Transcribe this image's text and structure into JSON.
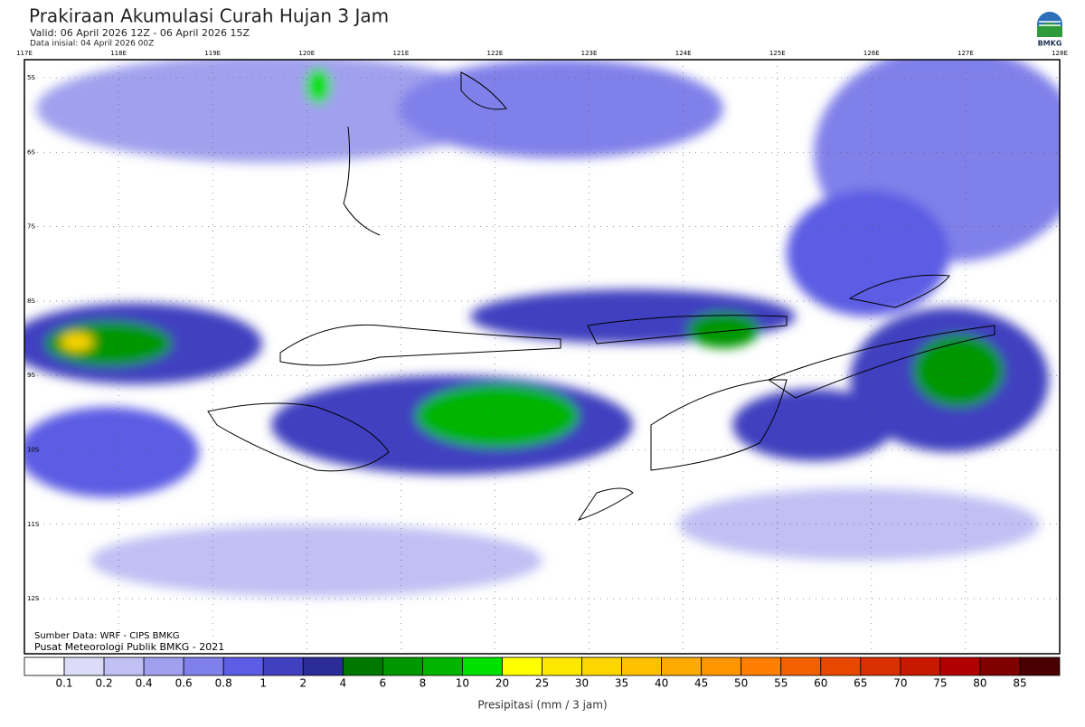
{
  "header": {
    "title": "Prakiraan Akumulasi Curah Hujan 3 Jam",
    "valid": "Valid: 06 April 2026 12Z - 06 April 2026 15Z",
    "init": "Data inisial: 04 April 2026 00Z"
  },
  "logo": {
    "text": "BMKG"
  },
  "map": {
    "lon_labels": [
      "117E",
      "118E",
      "119E",
      "120E",
      "121E",
      "122E",
      "123E",
      "124E",
      "125E",
      "126E",
      "127E",
      "128E"
    ],
    "lat_labels": [
      "5S",
      "6S",
      "7S",
      "8S",
      "9S",
      "10S",
      "11S",
      "12S"
    ]
  },
  "credits": [
    "Sumber Data: WRF - CIPS BMKG",
    "Pusat Meteorologi Publik BMKG - 2021"
  ],
  "legend": {
    "colors": [
      "#ffffff",
      "#dcdcf8",
      "#c0c0f4",
      "#a0a0ee",
      "#8080ea",
      "#5c5ce4",
      "#4040c0",
      "#2c2c98",
      "#007800",
      "#009600",
      "#00b400",
      "#00e000",
      "#ffff00",
      "#ffe800",
      "#ffd500",
      "#ffc000",
      "#ffaa00",
      "#ff9500",
      "#ff7f00",
      "#f26000",
      "#e84800",
      "#d83000",
      "#c81800",
      "#b00000",
      "#800000",
      "#4a0000"
    ],
    "labels": [
      "0.1",
      "0.2",
      "0.4",
      "0.6",
      "0.8",
      "1",
      "2",
      "4",
      "6",
      "8",
      "10",
      "20",
      "25",
      "30",
      "35",
      "40",
      "45",
      "50",
      "55",
      "60",
      "65",
      "70",
      "75",
      "80",
      "85"
    ],
    "axis_label": "Presipitasi (mm / 3 jam)"
  }
}
